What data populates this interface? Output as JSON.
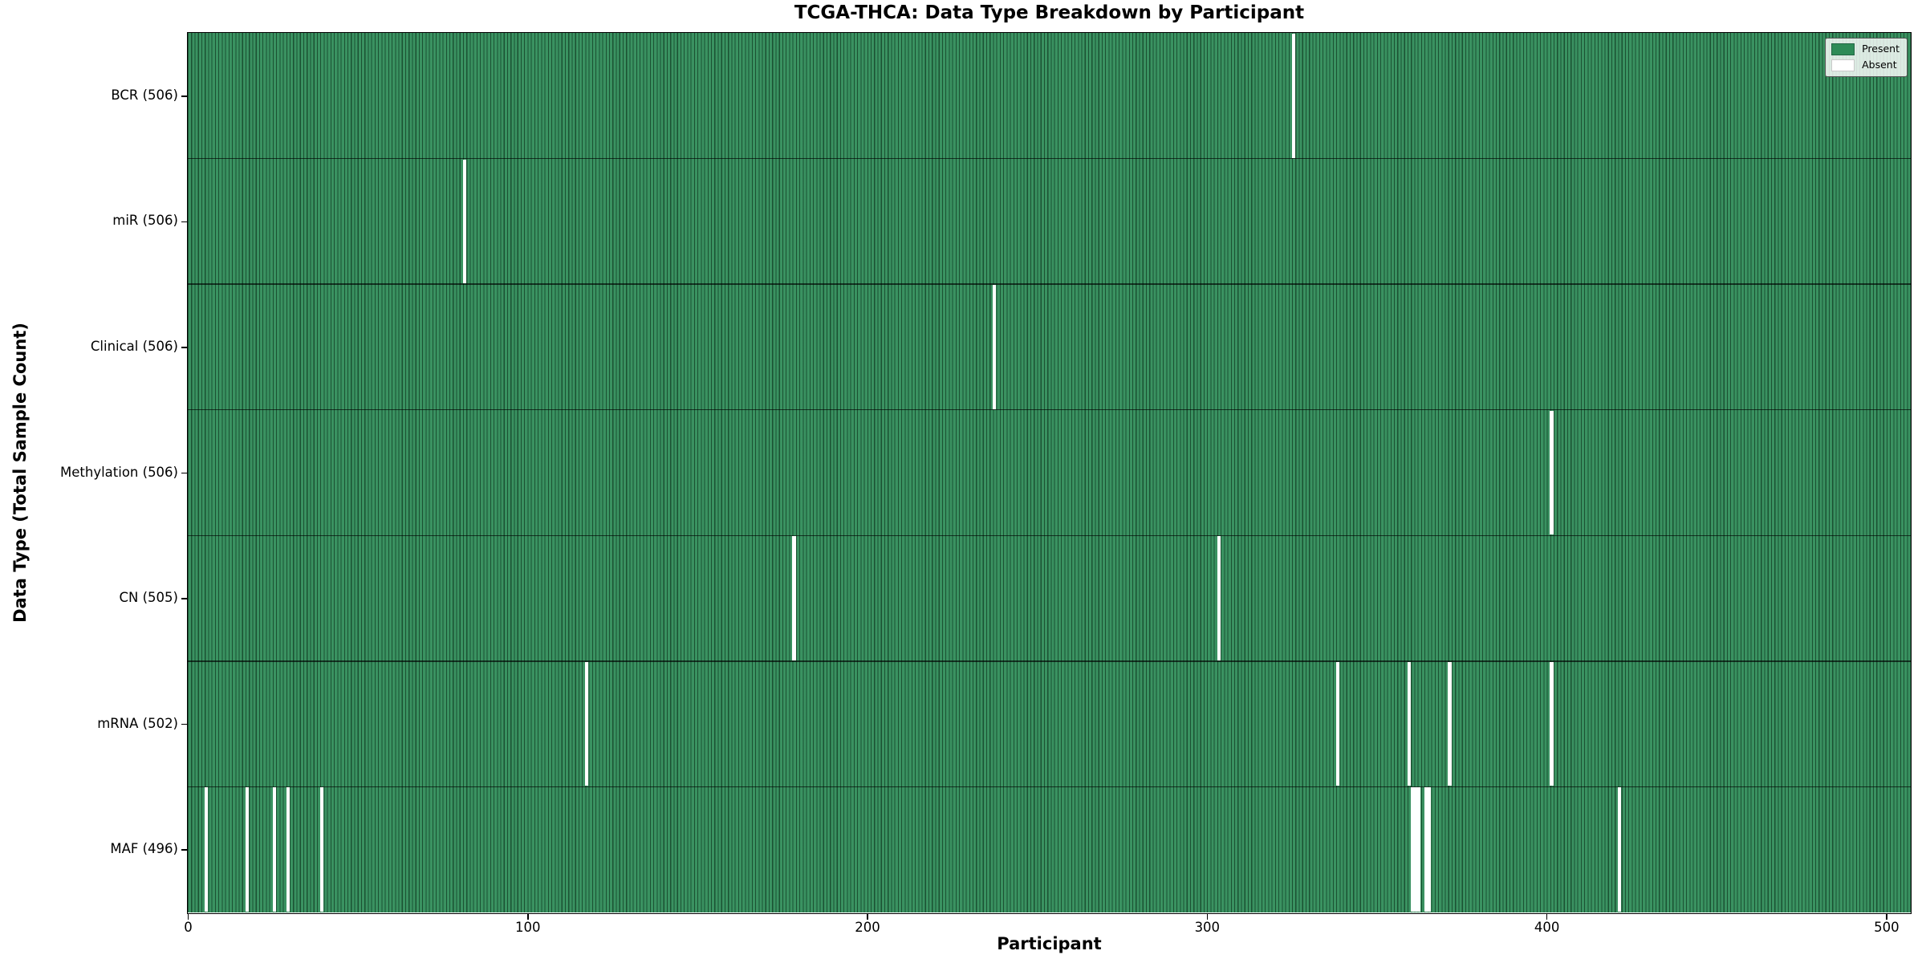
{
  "title": "TCGA-THCA: Data Type Breakdown by Participant",
  "xlabel": "Participant",
  "ylabel": "Data Type (Total Sample Count)",
  "legend": {
    "present_label": "Present",
    "absent_label": "Absent"
  },
  "colors": {
    "present": "#2e8b57",
    "absent": "#ffffff",
    "cell_edge": "#1c5c38",
    "axis": "#000000"
  },
  "chart_data": {
    "type": "heatmap",
    "title": "TCGA-THCA: Data Type Breakdown by Participant",
    "xlabel": "Participant",
    "ylabel": "Data Type (Total Sample Count)",
    "legend_entries": [
      "Present",
      "Absent"
    ],
    "legend_position": "upper right",
    "grid": false,
    "n_participants": 507,
    "x_range": [
      0,
      507
    ],
    "x_ticks": [
      0,
      100,
      200,
      300,
      400,
      500
    ],
    "x_tick_labels": [
      "0",
      "100",
      "200",
      "300",
      "400",
      "500"
    ],
    "rows": [
      {
        "name": "BCR",
        "count": 506,
        "tick_label": "BCR (506)",
        "absent_participants": [
          325
        ]
      },
      {
        "name": "miR",
        "count": 506,
        "tick_label": "miR (506)",
        "absent_participants": [
          81
        ]
      },
      {
        "name": "Clinical",
        "count": 506,
        "tick_label": "Clinical (506)",
        "absent_participants": [
          237
        ]
      },
      {
        "name": "Methylation",
        "count": 506,
        "tick_label": "Methylation (506)",
        "absent_participants": [
          401
        ]
      },
      {
        "name": "CN",
        "count": 505,
        "tick_label": "CN (505)",
        "absent_participants": [
          178,
          303
        ]
      },
      {
        "name": "mRNA",
        "count": 502,
        "tick_label": "mRNA (502)",
        "absent_participants": [
          117,
          338,
          359,
          371,
          401
        ]
      },
      {
        "name": "MAF",
        "count": 496,
        "tick_label": "MAF (496)",
        "absent_participants": [
          5,
          17,
          25,
          29,
          39,
          360,
          361,
          362,
          364,
          365,
          421
        ]
      }
    ]
  }
}
